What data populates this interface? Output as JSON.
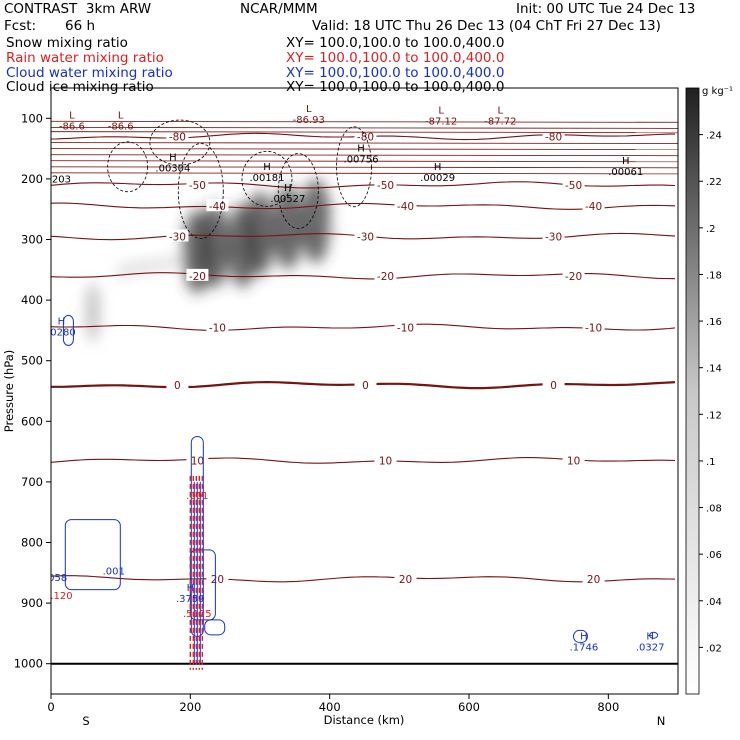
{
  "header": {
    "title": "CONTRAST  3km ARW",
    "center": "NCAR/MMM",
    "init": "Init: 00 UTC Tue 24 Dec 13",
    "fcst_label": "Fcst:",
    "fcst_value": "66 h",
    "valid": "Valid: 18 UTC Thu 26 Dec 13 (04 ChT Fri 27 Dec 13)",
    "fields": [
      {
        "name": "Snow mixing ratio",
        "xy": "XY= 100.0,100.0 to 100.0,400.0",
        "color": "#000000"
      },
      {
        "name": "Rain water mixing ratio",
        "xy": "XY= 100.0,100.0 to 100.0,400.0",
        "color": "#e02020"
      },
      {
        "name": "Cloud water mixing ratio",
        "xy": "XY= 100.0,100.0 to 100.0,400.0",
        "color": "#1530d0"
      },
      {
        "name": "Cloud ice mixing ratio",
        "xy": "XY= 100.0,100.0 to 100.0,400.0",
        "color": "#000000"
      }
    ]
  },
  "chart_data": {
    "type": "contour",
    "xlabel": "Distance (km)",
    "ylabel": "Pressure (hPa)",
    "xlim": [
      0,
      900
    ],
    "ylim": [
      1050,
      50
    ],
    "x_ticks": [
      0,
      200,
      400,
      600,
      800
    ],
    "y_ticks": [
      100,
      200,
      300,
      400,
      500,
      600,
      700,
      800,
      900,
      1000
    ],
    "x_end_labels": {
      "left": "S",
      "right": "N"
    },
    "colorbar": {
      "unit": "g kg⁻¹",
      "labels": [
        ".24",
        ".22",
        ".2",
        ".18",
        ".16",
        ".14",
        ".12",
        ".1",
        ".08",
        ".06",
        ".04",
        ".02"
      ]
    },
    "temperature_isotherms": [
      {
        "value": -80,
        "label": "-80",
        "pressure": 130
      },
      {
        "value": -50,
        "label": "-50",
        "pressure": 210
      },
      {
        "value": -40,
        "label": "-40",
        "pressure": 245
      },
      {
        "value": -30,
        "label": "-30",
        "pressure": 295
      },
      {
        "value": -20,
        "label": "-20",
        "pressure": 360
      },
      {
        "value": -10,
        "label": "-10",
        "pressure": 445
      },
      {
        "value": 0,
        "label": "0",
        "pressure": 540
      },
      {
        "value": 10,
        "label": "10",
        "pressure": 665
      },
      {
        "value": 20,
        "label": "20",
        "pressure": 860
      }
    ],
    "tropopause_lows": [
      {
        "label": "L",
        "value": "-86.6",
        "x": 30,
        "p": 100
      },
      {
        "label": "L",
        "value": "-86.6",
        "x": 100,
        "p": 100
      },
      {
        "label": "L",
        "value": "-86.93",
        "x": 370,
        "p": 90
      },
      {
        "label": "L",
        "value": "-87.12",
        "x": 560,
        "p": 92
      },
      {
        "label": "L",
        "value": "-87.72",
        "x": 645,
        "p": 92
      }
    ],
    "ice_maxima": [
      {
        "label": "H",
        "value": ".00304",
        "x": 175,
        "p": 170
      },
      {
        "label": "H",
        "value": ".00181",
        "x": 310,
        "p": 185
      },
      {
        "label": "H",
        "value": ".00527",
        "x": 340,
        "p": 220
      },
      {
        "label": "H",
        "value": ".00756",
        "x": 445,
        "p": 155
      },
      {
        "label": "H",
        "value": ".00029",
        "x": 555,
        "p": 185
      },
      {
        "label": "H",
        "value": ".00061",
        "x": 825,
        "p": 175
      },
      {
        "label": "",
        "value": "203",
        "x": 15,
        "p": 188
      }
    ],
    "cloud_water_maxima": [
      {
        "label": "H",
        "value": ".0280",
        "x": 15,
        "p": 440
      },
      {
        "label": "",
        "value": ".001",
        "x": 90,
        "p": 835
      },
      {
        "label": "",
        "value": "9058",
        "x": 5,
        "p": 845
      },
      {
        "label": "H",
        "value": ".3759",
        "x": 200,
        "p": 880
      },
      {
        "label": "H",
        "value": ".1746",
        "x": 765,
        "p": 960
      },
      {
        "label": "H",
        "value": ".0327",
        "x": 860,
        "p": 960
      }
    ],
    "rain_maxima": [
      {
        "label": "",
        "value": ".001",
        "x": 210,
        "p": 710
      },
      {
        "label": "",
        "value": ".5125",
        "x": 210,
        "p": 905
      },
      {
        "label": "",
        "value": ".120",
        "x": 15,
        "p": 875
      }
    ],
    "snow_maxima": [
      {
        "x": 235,
        "p": 310
      },
      {
        "x": 275,
        "p": 310
      },
      {
        "x": 210,
        "p": 320
      },
      {
        "x": 300,
        "p": 290
      },
      {
        "x": 340,
        "p": 280
      },
      {
        "x": 380,
        "p": 270
      },
      {
        "x": 60,
        "p": 420
      }
    ]
  }
}
